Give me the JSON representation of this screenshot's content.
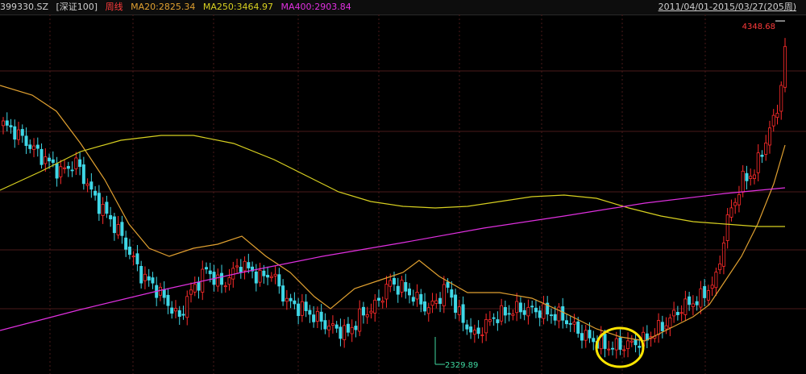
{
  "header": {
    "symbol": "399330.SZ",
    "name": "[深证100]",
    "period": "周线",
    "ma20": "MA20:2825.34",
    "ma250": "MA250:3464.97",
    "ma400": "MA400:2903.84",
    "range": "2011/04/01-2015/03/27(205周)"
  },
  "colors": {
    "up": "#ff2b2b",
    "down": "#3fd7e6",
    "ma20": "#e0a030",
    "ma250": "#d8d020",
    "ma400": "#e030e0",
    "grid": "#4a1a1a",
    "highlight": "#ffe600"
  },
  "chart_data": {
    "type": "candlestick",
    "ylim": [
      2250,
      4500
    ],
    "highest_label": "4348.68",
    "lowest_label": "2329.89",
    "series": [
      {
        "name": "MA20"
      },
      {
        "name": "MA250"
      },
      {
        "name": "MA400"
      }
    ]
  }
}
